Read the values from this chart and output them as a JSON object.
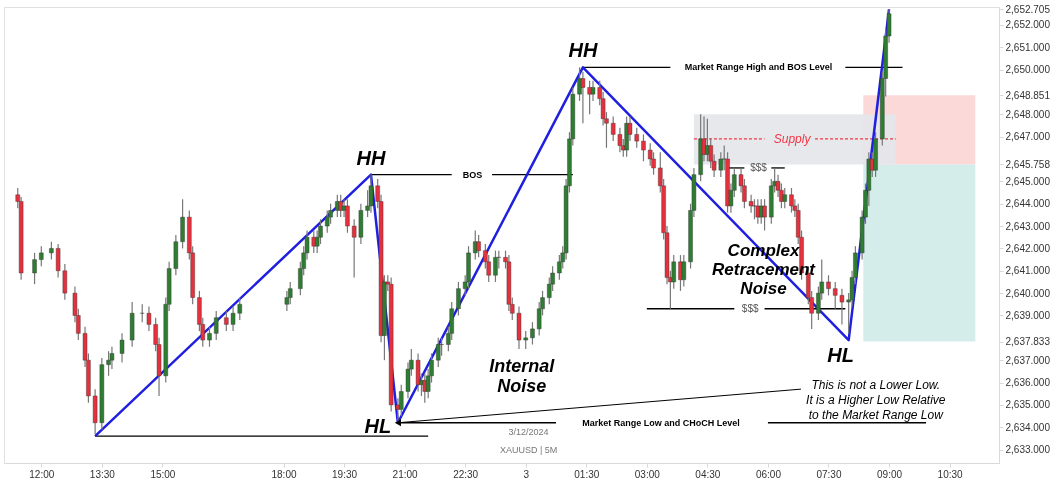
{
  "chart_data": {
    "type": "candlestick",
    "x": [
      "2024-12-02T11:25",
      "2024-12-02T11:30",
      "2024-12-02T11:50",
      "2024-12-02T12:00",
      "2024-12-02T12:15",
      "2024-12-02T12:25",
      "2024-12-02T12:35",
      "2024-12-02T12:50",
      "2024-12-02T12:55",
      "2024-12-02T13:05",
      "2024-12-02T13:10",
      "2024-12-02T13:20",
      "2024-12-02T13:30",
      "2024-12-02T13:40",
      "2024-12-02T13:45",
      "2024-12-02T14:00",
      "2024-12-02T14:15",
      "2024-12-02T14:30",
      "2024-12-02T14:40",
      "2024-12-02T14:50",
      "2024-12-02T14:55",
      "2024-12-02T15:05",
      "2024-12-02T15:10",
      "2024-12-02T15:20",
      "2024-12-02T15:30",
      "2024-12-02T15:40",
      "2024-12-02T15:45",
      "2024-12-02T15:55",
      "2024-12-02T16:00",
      "2024-12-02T16:10",
      "2024-12-02T16:20",
      "2024-12-02T16:35",
      "2024-12-02T16:45",
      "2024-12-02T16:55",
      "2024-12-02T18:05",
      "2024-12-02T18:10",
      "2024-12-02T18:25",
      "2024-12-02T18:30",
      "2024-12-02T18:35",
      "2024-12-02T18:45",
      "2024-12-02T18:50",
      "2024-12-02T18:55",
      "2024-12-02T19:05",
      "2024-12-02T19:10",
      "2024-12-02T19:20",
      "2024-12-02T19:25",
      "2024-12-02T19:30",
      "2024-12-02T19:35",
      "2024-12-02T19:45",
      "2024-12-02T19:55",
      "2024-12-02T20:05",
      "2024-12-02T20:10",
      "2024-12-02T20:20",
      "2024-12-02T20:25",
      "2024-12-02T20:30",
      "2024-12-02T20:35",
      "2024-12-02T20:40",
      "2024-12-02T20:50",
      "2024-12-02T20:55",
      "2024-12-02T21:05",
      "2024-12-02T21:10",
      "2024-12-02T21:20",
      "2024-12-02T21:25",
      "2024-12-02T21:30",
      "2024-12-02T21:35",
      "2024-12-02T21:40",
      "2024-12-02T21:50",
      "2024-12-02T21:55",
      "2024-12-02T22:05",
      "2024-12-02T22:10",
      "2024-12-02T22:20",
      "2024-12-02T22:30",
      "2024-12-02T22:35",
      "2024-12-02T22:45",
      "2024-12-02T22:50",
      "2024-12-02T23:00",
      "2024-12-02T23:05",
      "2024-12-02T23:15",
      "2024-12-02T23:20",
      "2024-12-02T23:30",
      "2024-12-02T23:35",
      "2024-12-02T23:40",
      "2024-12-02T23:50",
      "2024-12-03T00:00",
      "2024-12-03T00:10",
      "2024-12-03T00:20",
      "2024-12-03T00:25",
      "2024-12-03T00:35",
      "2024-12-03T00:40",
      "2024-12-03T00:50",
      "2024-12-03T00:55",
      "2024-12-03T01:00",
      "2024-12-03T01:05",
      "2024-12-03T01:10",
      "2024-12-03T01:20",
      "2024-12-03T01:25",
      "2024-12-03T01:35",
      "2024-12-03T01:40",
      "2024-12-03T01:50",
      "2024-12-03T01:55",
      "2024-12-03T02:00",
      "2024-12-03T02:10",
      "2024-12-03T02:20",
      "2024-12-03T02:25",
      "2024-12-03T02:30",
      "2024-12-03T02:35",
      "2024-12-03T02:45",
      "2024-12-03T02:55",
      "2024-12-03T03:05",
      "2024-12-03T03:10",
      "2024-12-03T03:20",
      "2024-12-03T03:25",
      "2024-12-03T03:30",
      "2024-12-03T03:35",
      "2024-12-03T03:40",
      "2024-12-03T03:50",
      "2024-12-03T03:55",
      "2024-12-03T04:05",
      "2024-12-03T04:10",
      "2024-12-03T04:20",
      "2024-12-03T04:25",
      "2024-12-03T04:30",
      "2024-12-03T04:35",
      "2024-12-03T04:40",
      "2024-12-03T04:50",
      "2024-12-03T04:55",
      "2024-12-03T05:00",
      "2024-12-03T05:05",
      "2024-12-03T05:10",
      "2024-12-03T05:20",
      "2024-12-03T05:25",
      "2024-12-03T05:35",
      "2024-12-03T05:40",
      "2024-12-03T05:45",
      "2024-12-03T05:50",
      "2024-12-03T05:55",
      "2024-12-03T06:05",
      "2024-12-03T06:10",
      "2024-12-03T06:15",
      "2024-12-03T06:20",
      "2024-12-03T06:25",
      "2024-12-03T06:35",
      "2024-12-03T06:40",
      "2024-12-03T06:45",
      "2024-12-03T06:50",
      "2024-12-03T07:00",
      "2024-12-03T07:05",
      "2024-12-03T07:15",
      "2024-12-03T07:20",
      "2024-12-03T07:30",
      "2024-12-03T07:40",
      "2024-12-03T07:50",
      "2024-12-03T08:00",
      "2024-12-03T08:05",
      "2024-12-03T08:10",
      "2024-12-03T08:20",
      "2024-12-03T08:25",
      "2024-12-03T08:30",
      "2024-12-03T08:35",
      "2024-12-03T08:40",
      "2024-12-03T08:50",
      "2024-12-03T08:55",
      "2024-12-03T09:00"
    ],
    "ohlc": [
      [
        2644.4,
        2644.7,
        2643.8,
        2644.1
      ],
      [
        2644.1,
        2644.3,
        2640.6,
        2640.9
      ],
      [
        2640.9,
        2641.8,
        2640.4,
        2641.5
      ],
      [
        2641.5,
        2642.1,
        2641.2,
        2641.8
      ],
      [
        2641.8,
        2642.3,
        2641.5,
        2642.0
      ],
      [
        2642.0,
        2642.2,
        2640.7,
        2641.0
      ],
      [
        2641.0,
        2641.3,
        2639.7,
        2640.0
      ],
      [
        2640.0,
        2640.3,
        2638.7,
        2639.0
      ],
      [
        2639.0,
        2639.3,
        2637.9,
        2638.2
      ],
      [
        2638.2,
        2638.5,
        2636.7,
        2637.0
      ],
      [
        2637.0,
        2637.3,
        2635.1,
        2635.4
      ],
      [
        2635.4,
        2635.7,
        2633.7,
        2634.2
      ],
      [
        2634.2,
        2637.1,
        2633.9,
        2636.8
      ],
      [
        2636.8,
        2637.4,
        2636.3,
        2637.0
      ],
      [
        2637.0,
        2637.6,
        2636.6,
        2637.3
      ],
      [
        2637.3,
        2638.2,
        2636.9,
        2637.9
      ],
      [
        2637.9,
        2639.6,
        2637.6,
        2639.1
      ],
      [
        2639.1,
        2639.5,
        2638.7,
        2639.1
      ],
      [
        2639.1,
        2639.4,
        2638.3,
        2638.6
      ],
      [
        2638.6,
        2638.9,
        2637.4,
        2637.7
      ],
      [
        2637.7,
        2638.0,
        2635.4,
        2636.3
      ],
      [
        2636.3,
        2639.8,
        2636.0,
        2639.5
      ],
      [
        2639.5,
        2641.4,
        2639.2,
        2641.1
      ],
      [
        2641.1,
        2642.6,
        2640.8,
        2642.3
      ],
      [
        2642.3,
        2644.2,
        2642.0,
        2643.4
      ],
      [
        2643.4,
        2643.7,
        2641.5,
        2641.8
      ],
      [
        2641.8,
        2642.1,
        2639.5,
        2639.8
      ],
      [
        2639.8,
        2640.1,
        2638.3,
        2638.6
      ],
      [
        2638.6,
        2638.9,
        2637.6,
        2637.9
      ],
      [
        2637.9,
        2638.5,
        2637.6,
        2638.2
      ],
      [
        2638.2,
        2639.2,
        2637.9,
        2638.9
      ],
      [
        2638.9,
        2639.2,
        2638.3,
        2638.6
      ],
      [
        2638.6,
        2639.4,
        2638.3,
        2639.1
      ],
      [
        2639.1,
        2639.8,
        2638.8,
        2639.5
      ],
      [
        2639.5,
        2640.1,
        2639.2,
        2639.8
      ],
      [
        2639.8,
        2640.5,
        2639.5,
        2640.2
      ],
      [
        2640.2,
        2641.4,
        2639.9,
        2641.1
      ],
      [
        2641.1,
        2642.1,
        2640.8,
        2641.8
      ],
      [
        2641.8,
        2642.8,
        2641.5,
        2642.5
      ],
      [
        2642.5,
        2642.8,
        2641.8,
        2642.1
      ],
      [
        2642.1,
        2642.8,
        2641.8,
        2642.5
      ],
      [
        2642.5,
        2643.3,
        2642.2,
        2643.0
      ],
      [
        2643.0,
        2643.7,
        2642.7,
        2643.4
      ],
      [
        2643.4,
        2644.0,
        2643.1,
        2643.7
      ],
      [
        2643.7,
        2644.4,
        2643.4,
        2644.1
      ],
      [
        2644.1,
        2644.4,
        2643.4,
        2643.7
      ],
      [
        2643.7,
        2644.2,
        2643.4,
        2643.9
      ],
      [
        2643.9,
        2644.2,
        2642.7,
        2643.0
      ],
      [
        2643.0,
        2643.3,
        2640.7,
        2642.5
      ],
      [
        2642.5,
        2644.0,
        2642.2,
        2643.7
      ],
      [
        2643.7,
        2644.6,
        2643.4,
        2643.9
      ],
      [
        2643.9,
        2645.3,
        2643.6,
        2644.8
      ],
      [
        2644.8,
        2645.1,
        2643.8,
        2644.1
      ],
      [
        2644.1,
        2644.4,
        2637.8,
        2638.1
      ],
      [
        2638.1,
        2640.8,
        2637.0,
        2640.5
      ],
      [
        2640.5,
        2640.8,
        2640.1,
        2640.4
      ],
      [
        2640.4,
        2640.7,
        2634.7,
        2635.0
      ],
      [
        2635.0,
        2635.3,
        2634.2,
        2634.8
      ],
      [
        2634.8,
        2635.9,
        2634.5,
        2635.6
      ],
      [
        2635.6,
        2636.9,
        2635.3,
        2636.6
      ],
      [
        2636.6,
        2637.5,
        2636.3,
        2637.0
      ],
      [
        2637.0,
        2637.3,
        2635.6,
        2635.9
      ],
      [
        2635.9,
        2636.4,
        2635.4,
        2636.1
      ],
      [
        2636.1,
        2636.4,
        2635.1,
        2635.6
      ],
      [
        2635.6,
        2636.6,
        2635.3,
        2636.3
      ],
      [
        2636.3,
        2637.3,
        2636.0,
        2637.0
      ],
      [
        2637.0,
        2638.0,
        2636.7,
        2637.7
      ],
      [
        2637.7,
        2638.0,
        2637.2,
        2637.7
      ],
      [
        2637.7,
        2638.5,
        2637.4,
        2638.2
      ],
      [
        2638.2,
        2639.6,
        2637.9,
        2639.3
      ],
      [
        2639.3,
        2640.5,
        2639.0,
        2640.2
      ],
      [
        2640.2,
        2640.8,
        2639.9,
        2640.5
      ],
      [
        2640.5,
        2642.1,
        2640.2,
        2641.8
      ],
      [
        2641.8,
        2642.8,
        2641.5,
        2642.3
      ],
      [
        2642.3,
        2642.6,
        2641.6,
        2641.9
      ],
      [
        2641.9,
        2642.2,
        2641.1,
        2641.4
      ],
      [
        2641.4,
        2641.7,
        2640.5,
        2640.8
      ],
      [
        2640.8,
        2641.9,
        2640.5,
        2641.6
      ],
      [
        2641.6,
        2641.9,
        2641.1,
        2641.6
      ],
      [
        2641.6,
        2641.9,
        2641.1,
        2641.4
      ],
      [
        2641.4,
        2641.7,
        2639.2,
        2639.5
      ],
      [
        2639.5,
        2639.8,
        2638.8,
        2639.1
      ],
      [
        2639.1,
        2639.4,
        2637.5,
        2637.9
      ],
      [
        2637.9,
        2638.3,
        2637.5,
        2638.0
      ],
      [
        2638.0,
        2638.7,
        2637.7,
        2638.4
      ],
      [
        2638.4,
        2639.6,
        2638.1,
        2639.3
      ],
      [
        2639.3,
        2640.1,
        2639.0,
        2639.8
      ],
      [
        2639.8,
        2640.7,
        2639.5,
        2640.4
      ],
      [
        2640.4,
        2641.2,
        2640.1,
        2640.9
      ],
      [
        2640.9,
        2641.7,
        2640.6,
        2641.4
      ],
      [
        2641.4,
        2642.1,
        2641.1,
        2641.8
      ],
      [
        2641.8,
        2645.1,
        2641.5,
        2644.8
      ],
      [
        2644.8,
        2647.2,
        2644.5,
        2646.9
      ],
      [
        2646.9,
        2649.2,
        2646.6,
        2648.9
      ],
      [
        2648.9,
        2650.1,
        2648.6,
        2649.6
      ],
      [
        2649.6,
        2649.9,
        2647.6,
        2649.2
      ],
      [
        2649.2,
        2649.5,
        2648.0,
        2648.9
      ],
      [
        2648.9,
        2649.5,
        2648.6,
        2649.2
      ],
      [
        2649.2,
        2649.5,
        2648.4,
        2648.7
      ],
      [
        2648.7,
        2649.0,
        2647.5,
        2647.8
      ],
      [
        2647.8,
        2648.1,
        2646.5,
        2647.6
      ],
      [
        2647.6,
        2647.9,
        2646.8,
        2647.1
      ],
      [
        2647.1,
        2647.4,
        2646.3,
        2646.6
      ],
      [
        2646.6,
        2646.9,
        2646.1,
        2646.4
      ],
      [
        2646.4,
        2647.9,
        2646.1,
        2647.6
      ],
      [
        2647.6,
        2647.9,
        2646.8,
        2647.1
      ],
      [
        2647.1,
        2647.4,
        2646.5,
        2646.8
      ],
      [
        2646.8,
        2647.1,
        2645.9,
        2646.4
      ],
      [
        2646.4,
        2646.7,
        2645.7,
        2646.0
      ],
      [
        2646.0,
        2646.3,
        2645.3,
        2645.6
      ],
      [
        2645.6,
        2646.3,
        2644.5,
        2644.8
      ],
      [
        2644.8,
        2645.1,
        2642.4,
        2642.7
      ],
      [
        2642.7,
        2643.0,
        2640.4,
        2640.7
      ],
      [
        2640.7,
        2641.0,
        2639.3,
        2640.5
      ],
      [
        2640.5,
        2641.7,
        2640.2,
        2641.4
      ],
      [
        2641.4,
        2641.7,
        2640.1,
        2640.6
      ],
      [
        2640.6,
        2641.7,
        2640.3,
        2641.4
      ],
      [
        2641.4,
        2644.0,
        2641.1,
        2643.7
      ],
      [
        2643.7,
        2645.6,
        2643.4,
        2645.3
      ],
      [
        2645.3,
        2648.0,
        2645.0,
        2646.9
      ],
      [
        2646.9,
        2647.9,
        2645.9,
        2646.2
      ],
      [
        2646.2,
        2647.8,
        2645.9,
        2646.6
      ],
      [
        2646.6,
        2646.9,
        2645.6,
        2645.9
      ],
      [
        2645.9,
        2646.2,
        2645.2,
        2645.5
      ],
      [
        2645.5,
        2646.3,
        2645.2,
        2646.0
      ],
      [
        2646.0,
        2646.6,
        2645.5,
        2646.0
      ],
      [
        2646.0,
        2646.3,
        2643.6,
        2643.9
      ],
      [
        2643.9,
        2644.9,
        2643.6,
        2644.6
      ],
      [
        2644.6,
        2645.6,
        2644.3,
        2645.3
      ],
      [
        2645.3,
        2645.6,
        2644.5,
        2644.8
      ],
      [
        2644.8,
        2645.1,
        2643.8,
        2644.1
      ],
      [
        2644.1,
        2644.4,
        2643.6,
        2643.9
      ],
      [
        2643.9,
        2644.2,
        2643.3,
        2643.9
      ],
      [
        2643.9,
        2644.2,
        2643.1,
        2643.4
      ],
      [
        2643.4,
        2644.2,
        2643.1,
        2643.9
      ],
      [
        2643.9,
        2644.2,
        2642.8,
        2643.4
      ],
      [
        2643.4,
        2645.1,
        2643.1,
        2644.8
      ],
      [
        2644.8,
        2645.6,
        2644.5,
        2645.0
      ],
      [
        2645.0,
        2645.3,
        2644.3,
        2644.6
      ],
      [
        2644.6,
        2644.9,
        2643.8,
        2644.1
      ],
      [
        2644.1,
        2644.7,
        2643.8,
        2644.4
      ],
      [
        2644.4,
        2644.7,
        2643.6,
        2643.9
      ],
      [
        2643.9,
        2644.2,
        2643.4,
        2643.7
      ],
      [
        2643.7,
        2644.0,
        2642.2,
        2642.5
      ],
      [
        2642.5,
        2642.8,
        2640.6,
        2640.9
      ],
      [
        2640.9,
        2641.2,
        2639.5,
        2639.8
      ],
      [
        2639.8,
        2640.1,
        2638.4,
        2639.1
      ],
      [
        2639.1,
        2640.3,
        2638.8,
        2640.0
      ],
      [
        2640.0,
        2641.5,
        2639.7,
        2640.5
      ],
      [
        2640.5,
        2640.8,
        2639.9,
        2640.2
      ],
      [
        2640.2,
        2640.5,
        2639.3,
        2639.9
      ],
      [
        2639.9,
        2640.2,
        2638.6,
        2639.6
      ],
      [
        2639.6,
        2640.0,
        2638.2,
        2639.7
      ],
      [
        2639.7,
        2641.0,
        2639.4,
        2640.7
      ],
      [
        2640.7,
        2642.1,
        2640.4,
        2641.8
      ],
      [
        2641.8,
        2643.7,
        2641.5,
        2643.4
      ],
      [
        2643.4,
        2644.9,
        2643.1,
        2644.6
      ],
      [
        2644.6,
        2646.3,
        2643.9,
        2646.0
      ],
      [
        2646.0,
        2646.3,
        2645.2,
        2645.5
      ],
      [
        2645.5,
        2647.2,
        2645.2,
        2646.9
      ],
      [
        2646.9,
        2649.9,
        2646.6,
        2649.6
      ],
      [
        2649.6,
        2651.8,
        2648.8,
        2651.5
      ],
      [
        2651.5,
        2652.7,
        2651.2,
        2652.5
      ]
    ],
    "series": [
      {
        "type": "bar",
        "color": "#fbd5d5",
        "x": [
          "2024-12-03T09:45"
        ],
        "base": [
          2645.758
        ],
        "values": [
          3.093
        ]
      },
      {
        "type": "bar",
        "color": "#cfeae8",
        "x": [
          "2024-12-03T09:45"
        ],
        "base": [
          2637.833
        ],
        "values": [
          7.925
        ]
      },
      {
        "type": "bar",
        "color": "#e3e5ea",
        "x": [
          "2024-12-03T06:40"
        ],
        "base": [
          2645.758
        ],
        "values": [
          2.242
        ]
      },
      {
        "type": "line",
        "color": "#f23645",
        "line_style": "dashed",
        "x": [
          "2024-12-03T04:10",
          "2024-12-03T05:55"
        ],
        "values": [
          2646.9,
          2646.9
        ]
      },
      {
        "type": "line",
        "color": "#f23645",
        "line_style": "dashed",
        "x": [
          "2024-12-03T07:10",
          "2024-12-03T09:10"
        ],
        "values": [
          2646.9,
          2646.9
        ]
      },
      {
        "type": "line",
        "color": "#000000",
        "x": [
          "2024-12-02T13:20",
          "2024-12-02T21:35"
        ],
        "values": [
          2633.6,
          2633.6
        ]
      },
      {
        "type": "line",
        "color": "#000000",
        "x": [
          "2024-12-02T20:50",
          "2024-12-03T00:45"
        ],
        "values": [
          2634.2,
          2634.2
        ]
      },
      {
        "type": "line",
        "color": "#000000",
        "x": [
          "2024-12-03T06:00",
          "2024-12-03T09:55"
        ],
        "values": [
          2634.2,
          2634.2
        ]
      },
      {
        "type": "line",
        "color": "#000000",
        "x": [
          "2024-12-03T01:25",
          "2024-12-03T03:35"
        ],
        "values": [
          2650.1,
          2650.1
        ]
      },
      {
        "type": "line",
        "color": "#000000",
        "x": [
          "2024-12-03T07:55",
          "2024-12-03T09:20"
        ],
        "values": [
          2650.1,
          2650.1
        ]
      },
      {
        "type": "line",
        "color": "#000000",
        "x": [
          "2024-12-02T20:10",
          "2024-12-02T22:10"
        ],
        "values": [
          2645.3,
          2645.3
        ]
      },
      {
        "type": "line",
        "color": "#000000",
        "x": [
          "2024-12-02T23:10",
          "2024-12-03T01:10"
        ],
        "values": [
          2645.3,
          2645.3
        ]
      },
      {
        "type": "line",
        "color": "#000000",
        "x": [
          "2024-12-03T03:00",
          "2024-12-03T05:10"
        ],
        "values": [
          2639.3,
          2639.3
        ]
      },
      {
        "type": "line",
        "color": "#000000",
        "x": [
          "2024-12-03T05:55",
          "2024-12-03T07:55"
        ],
        "values": [
          2639.3,
          2639.3
        ]
      },
      {
        "type": "line",
        "color": "#000000",
        "x": [
          "2024-12-03T05:00",
          "2024-12-03T05:25"
        ],
        "values": [
          2645.6,
          2645.6
        ]
      },
      {
        "type": "line",
        "color": "#000000",
        "x": [
          "2024-12-03T06:05",
          "2024-12-03T06:25"
        ],
        "values": [
          2645.6,
          2645.6
        ]
      },
      {
        "type": "line",
        "color": "#1f1fe0",
        "x": [
          "2024-12-02T13:20",
          "2024-12-02T20:10",
          "2024-12-02T20:50",
          "2024-12-03T01:25",
          "2024-12-03T08:00",
          "2024-12-03T09:00"
        ],
        "values": [
          2633.6,
          2645.3,
          2634.2,
          2650.1,
          2637.9,
          2652.7
        ]
      }
    ],
    "annotations": [
      {
        "text": "HH",
        "x": "2024-12-02T20:10",
        "y": 2645.3
      },
      {
        "text": "HH",
        "x": "2024-12-03T01:25",
        "y": 2650.1
      },
      {
        "text": "HL",
        "x": "2024-12-02T20:50",
        "y": 2634.2
      },
      {
        "text": "HL",
        "x": "2024-12-03T08:00",
        "y": 2637.9
      },
      "BOS",
      "Market Range High and BOS Level",
      "Market Range Low and CHoCH Level",
      "$$$",
      "$$$",
      "Supply",
      "Internal\nNoise",
      "Complex\nRetracement\nNoise",
      {
        "text": "This is not a Lower Low.\nIt is a Higher Low Relative\nto the Market Range Low",
        "x": "2024-12-02T20:50",
        "y": 2634.2
      },
      "3/12/2024",
      "XAUUSD | 5M"
    ],
    "xlim": [
      "2024-12-02T11:12",
      "2024-12-03T11:36"
    ],
    "ylim": [
      2632.4,
      2652.8
    ],
    "xticks": [
      {
        "value": "2024-12-02T12:00",
        "label": "12:00"
      },
      {
        "value": "2024-12-02T13:30",
        "label": "13:30"
      },
      {
        "value": "2024-12-02T15:00",
        "label": "15:00"
      },
      {
        "value": "2024-12-02T18:00",
        "label": "18:00"
      },
      {
        "value": "2024-12-02T19:30",
        "label": "19:30"
      },
      {
        "value": "2024-12-02T21:00",
        "label": "21:00"
      },
      {
        "value": "2024-12-02T22:30",
        "label": "22:30"
      },
      {
        "value": "2024-12-03T00:00",
        "label": "3"
      },
      {
        "value": "2024-12-03T01:30",
        "label": "01:30"
      },
      {
        "value": "2024-12-03T03:00",
        "label": "03:00"
      },
      {
        "value": "2024-12-03T04:30",
        "label": "04:30"
      },
      {
        "value": "2024-12-03T06:00",
        "label": "06:00"
      },
      {
        "value": "2024-12-03T07:30",
        "label": "07:30"
      },
      {
        "value": "2024-12-03T09:00",
        "label": "09:00"
      },
      {
        "value": "2024-12-03T10:30",
        "label": "10:30"
      }
    ],
    "yticks": [
      {
        "value": 2633,
        "label": "2,633.000"
      },
      {
        "value": 2634,
        "label": "2,634.000"
      },
      {
        "value": 2635,
        "label": "2,635.000"
      },
      {
        "value": 2636,
        "label": "2,636.000"
      },
      {
        "value": 2637,
        "label": "2,637.000"
      },
      {
        "value": 2637.833,
        "label": "2,637.833"
      },
      {
        "value": 2639,
        "label": "2,639.000"
      },
      {
        "value": 2640,
        "label": "2,640.000"
      },
      {
        "value": 2641,
        "label": "2,641.000"
      },
      {
        "value": 2642,
        "label": "2,642.000"
      },
      {
        "value": 2643,
        "label": "2,643.000"
      },
      {
        "value": 2644,
        "label": "2,644.000"
      },
      {
        "value": 2645,
        "label": "2,645.000"
      },
      {
        "value": 2645.758,
        "label": "2,645.758"
      },
      {
        "value": 2647,
        "label": "2,647.000"
      },
      {
        "value": 2648,
        "label": "2,648.000"
      },
      {
        "value": 2648.851,
        "label": "2,648.851"
      },
      {
        "value": 2650,
        "label": "2,650.000"
      },
      {
        "value": 2651,
        "label": "2,651.000"
      },
      {
        "value": 2652,
        "label": "2,652.000"
      },
      {
        "value": 2652.705,
        "label": "2,652.705"
      }
    ],
    "grid": false
  }
}
